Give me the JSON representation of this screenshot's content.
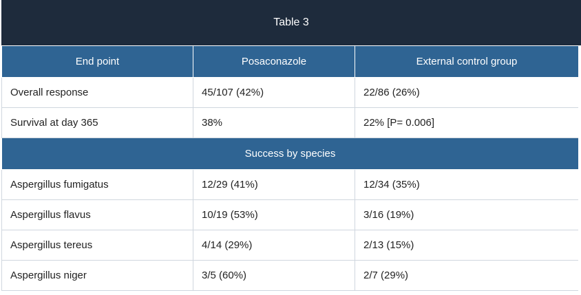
{
  "table": {
    "title": "Table 3",
    "headers": [
      "End point",
      "Posaconazole",
      "External control group"
    ],
    "rows_top": [
      [
        "Overall response",
        "45/107 (42%)",
        "22/86 (26%)"
      ],
      [
        "Survival at day 365",
        "38%",
        "22% [P= 0.006]"
      ]
    ],
    "section_label": "Success by species",
    "rows_species": [
      [
        "Aspergillus fumigatus",
        "12/29 (41%)",
        "12/34 (35%)"
      ],
      [
        "Aspergillus flavus",
        "10/19 (53%)",
        "3/16 (19%)"
      ],
      [
        "Aspergillus tereus",
        "4/14 (29%)",
        "2/13 (15%)"
      ],
      [
        "Aspergillus niger",
        "3/5 (60%)",
        "2/7 (29%)"
      ]
    ]
  },
  "colors": {
    "title_bg": "#1e2b3c",
    "header_bg": "#2f6493",
    "border": "#cfd6de"
  }
}
